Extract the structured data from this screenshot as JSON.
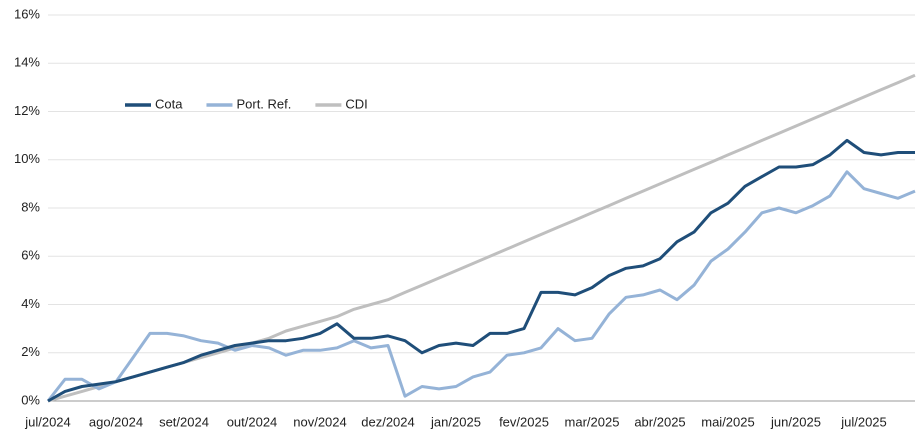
{
  "chart_data": {
    "type": "line",
    "categories": [
      "jul/2024",
      null,
      null,
      null,
      "ago/2024",
      null,
      null,
      null,
      "set/2024",
      null,
      null,
      null,
      "out/2024",
      null,
      null,
      null,
      "nov/2024",
      null,
      null,
      null,
      "dez/2024",
      null,
      null,
      null,
      "jan/2025",
      null,
      null,
      null,
      "fev/2025",
      null,
      null,
      null,
      "mar/2025",
      null,
      null,
      null,
      "abr/2025",
      null,
      null,
      null,
      "mai/2025",
      null,
      null,
      null,
      "jun/2025",
      null,
      null,
      null,
      "jul/2025",
      null,
      null,
      null
    ],
    "series": [
      {
        "name": "Cota",
        "color": "#1f4e79",
        "values": [
          0,
          0.4,
          0.6,
          0.7,
          0.8,
          1.0,
          1.2,
          1.4,
          1.6,
          1.9,
          2.1,
          2.3,
          2.4,
          2.5,
          2.5,
          2.6,
          2.8,
          3.2,
          2.6,
          2.6,
          2.7,
          2.5,
          2.0,
          2.3,
          2.4,
          2.3,
          2.8,
          2.8,
          3.0,
          4.5,
          4.5,
          4.4,
          4.7,
          5.2,
          5.5,
          5.6,
          5.9,
          6.6,
          7.0,
          7.8,
          8.2,
          8.9,
          9.3,
          9.7,
          9.7,
          9.8,
          10.2,
          10.8,
          10.3,
          10.2,
          10.3,
          10.3
        ]
      },
      {
        "name": "Port. Ref.",
        "color": "#95b3d7",
        "values": [
          0,
          0.9,
          0.9,
          0.5,
          0.8,
          1.8,
          2.8,
          2.8,
          2.7,
          2.5,
          2.4,
          2.1,
          2.3,
          2.2,
          1.9,
          2.1,
          2.1,
          2.2,
          2.5,
          2.2,
          2.3,
          0.2,
          0.6,
          0.5,
          0.6,
          1.0,
          1.2,
          1.9,
          2.0,
          2.2,
          3.0,
          2.5,
          2.6,
          3.6,
          4.3,
          4.4,
          4.6,
          4.2,
          4.8,
          5.8,
          6.3,
          7.0,
          7.8,
          8.0,
          7.8,
          8.1,
          8.5,
          9.5,
          8.8,
          8.6,
          8.4,
          8.7
        ]
      },
      {
        "name": "CDI",
        "color": "#bfbfbf",
        "values": [
          0,
          0.2,
          0.4,
          0.6,
          0.8,
          1.0,
          1.2,
          1.4,
          1.6,
          1.8,
          2.0,
          2.2,
          2.4,
          2.6,
          2.9,
          3.1,
          3.3,
          3.5,
          3.8,
          4.0,
          4.2,
          4.5,
          4.8,
          5.1,
          5.4,
          5.7,
          6.0,
          6.3,
          6.6,
          6.9,
          7.2,
          7.5,
          7.8,
          8.1,
          8.4,
          8.7,
          9.0,
          9.3,
          9.6,
          9.9,
          10.2,
          10.5,
          10.8,
          11.1,
          11.4,
          11.7,
          12.0,
          12.3,
          12.6,
          12.9,
          13.2,
          13.5
        ]
      }
    ],
    "ylim": [
      0,
      16
    ],
    "yticks": [
      {
        "value": 0,
        "label": "0%"
      },
      {
        "value": 2,
        "label": "2%"
      },
      {
        "value": 4,
        "label": "4%"
      },
      {
        "value": 6,
        "label": "6%"
      },
      {
        "value": 8,
        "label": "8%"
      },
      {
        "value": 10,
        "label": "10%"
      },
      {
        "value": 12,
        "label": "12%"
      },
      {
        "value": 14,
        "label": "14%"
      },
      {
        "value": 16,
        "label": "16%"
      }
    ],
    "grid": true,
    "legend": "upper left"
  }
}
